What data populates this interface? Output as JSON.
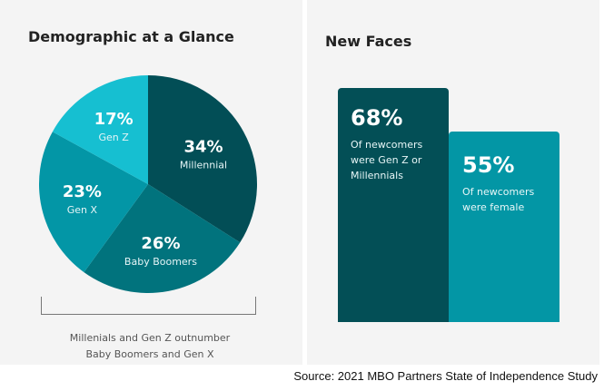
{
  "left_panel": {
    "title": "Demographic at a Glance",
    "caption_line1": "Millenials and Gen Z outnumber",
    "caption_line2": "Baby Boomers and Gen X"
  },
  "right_panel": {
    "title": "New Faces",
    "cards": [
      {
        "value": "68%",
        "desc": [
          "Of newcomers",
          "were Gen Z or",
          "Millennials"
        ],
        "color": "#034f56"
      },
      {
        "value": "55%",
        "desc": [
          "Of newcomers",
          "were female"
        ],
        "color": "#0396a5"
      }
    ]
  },
  "source": "Source: 2021 MBO Partners State of Independence Study",
  "chart_data": [
    {
      "type": "pie",
      "title": "Demographic at a Glance",
      "start": "12 o'clock, clockwise",
      "slices": [
        {
          "label": "Millennial",
          "value": 34,
          "display": "34%",
          "color": "#024e56"
        },
        {
          "label": "Baby Boomers",
          "value": 26,
          "display": "26%",
          "color": "#01737d"
        },
        {
          "label": "Gen X",
          "value": 23,
          "display": "23%",
          "color": "#0396a6"
        },
        {
          "label": "Gen Z",
          "value": 17,
          "display": "17%",
          "color": "#16bfd1"
        }
      ]
    },
    {
      "type": "bar",
      "title": "New Faces",
      "categories": [
        "Of newcomers were Gen Z or Millennials",
        "Of newcomers were female"
      ],
      "values": [
        68,
        55
      ],
      "unit": "%"
    }
  ]
}
